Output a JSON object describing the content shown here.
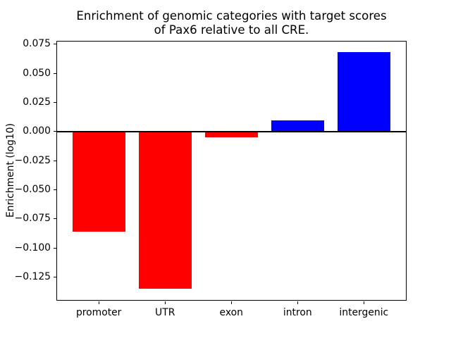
{
  "figure": {
    "title_lines": [
      "Enrichment of genomic categories with target scores",
      "of Pax6 relative to all CRE."
    ]
  },
  "chart_data": {
    "type": "bar",
    "title": "Enrichment of genomic categories with target scores\nof Pax6 relative to all CRE.",
    "xlabel": "",
    "ylabel": "Enrichment (log10)",
    "categories": [
      "promoter",
      "UTR",
      "exon",
      "intron",
      "intergenic"
    ],
    "values": [
      -0.086,
      -0.135,
      -0.005,
      0.0095,
      0.068
    ],
    "bar_colors": [
      "#ff0000",
      "#ff0000",
      "#ff0000",
      "#0000ff",
      "#0000ff"
    ],
    "color_rule": {
      "negative": "#ff0000",
      "positive": "#0000ff"
    },
    "bar_width_fraction": 0.8,
    "ylim": [
      -0.1452,
      0.0782
    ],
    "xlim": [
      -0.64,
      4.64
    ],
    "yticks": [
      0.075,
      0.05,
      0.025,
      0.0,
      -0.025,
      -0.05,
      -0.075,
      -0.1,
      -0.125
    ],
    "ytick_labels": [
      "0.075",
      "0.050",
      "0.025",
      "0.000",
      "−0.025",
      "−0.050",
      "−0.075",
      "−0.100",
      "−0.125"
    ],
    "zero_line": true,
    "grid": false,
    "legend": false,
    "text_color": "#000000",
    "axis_color": "#000000",
    "background": "#ffffff"
  }
}
